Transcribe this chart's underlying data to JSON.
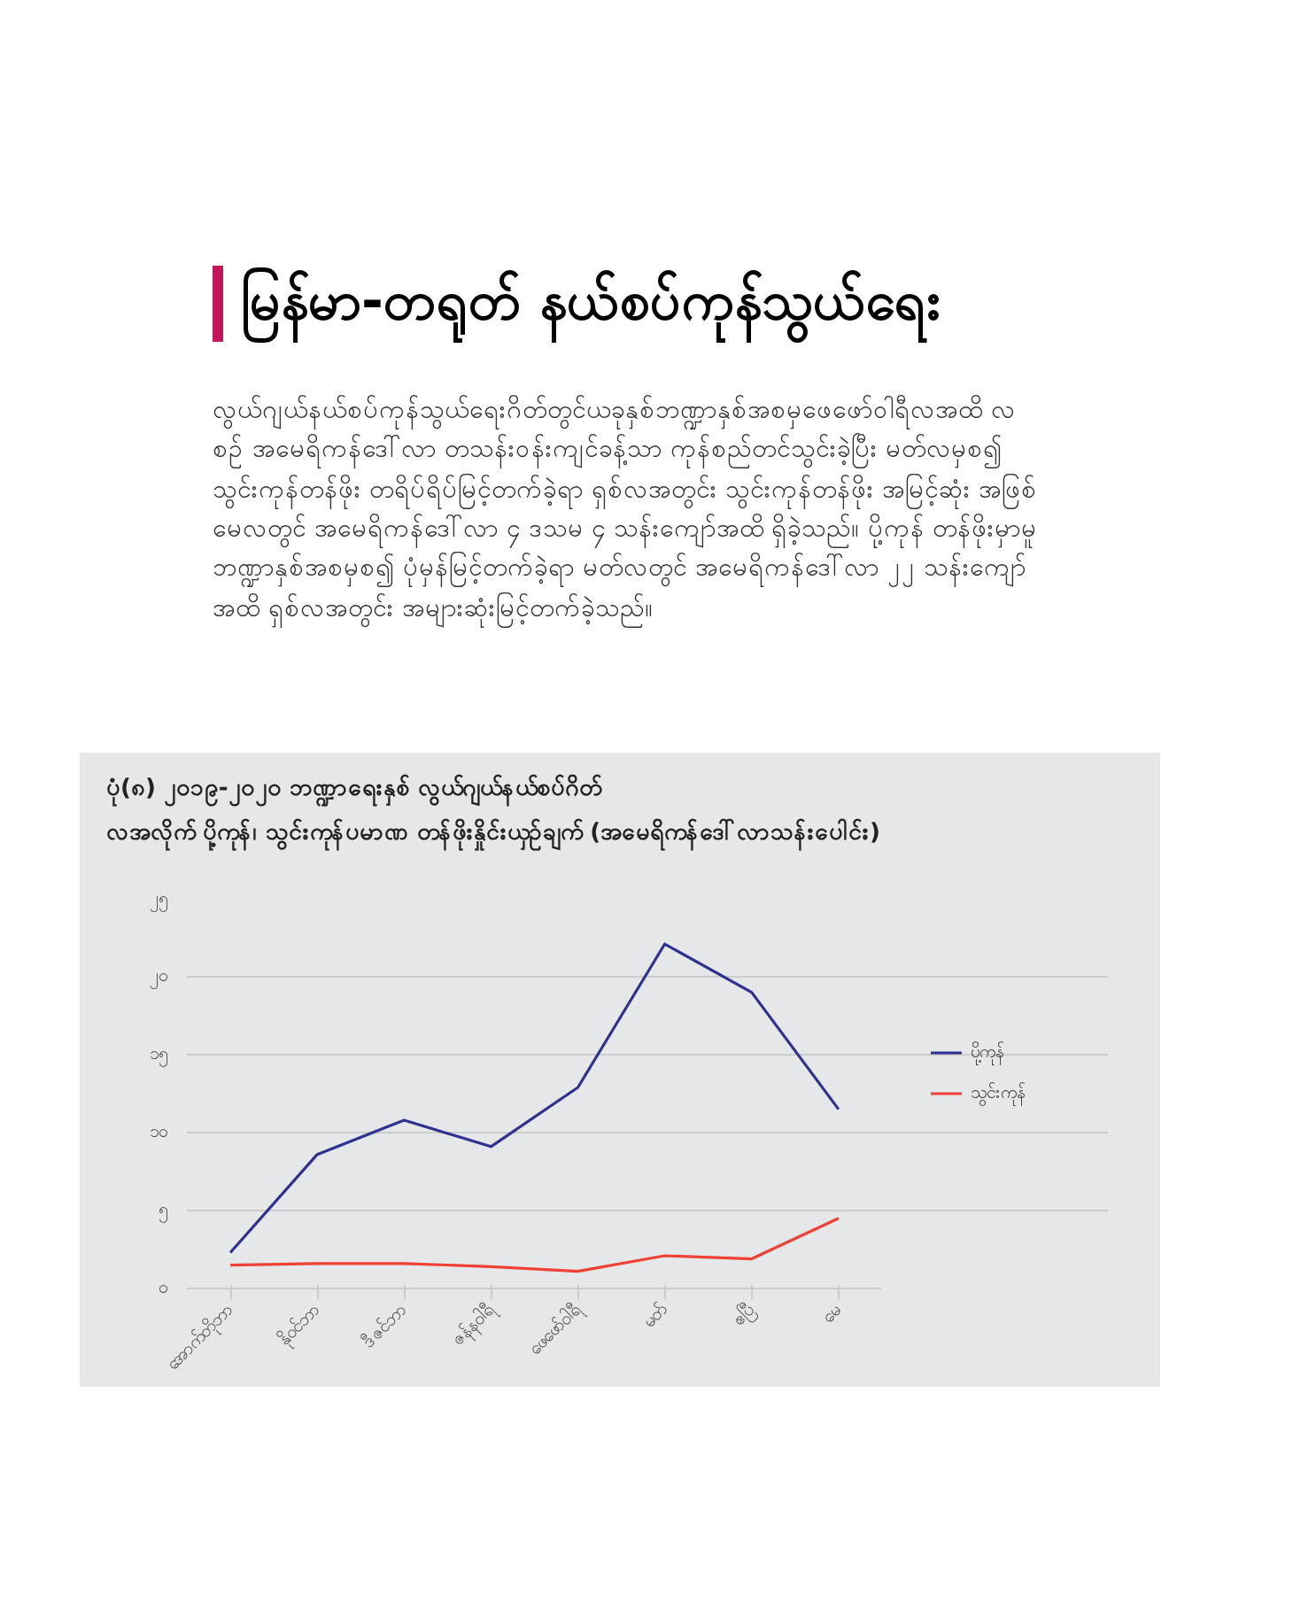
{
  "chart_data": {
    "type": "line",
    "title": "ပုံ(၈)   ၂၀၁၉-၂၀၂၀ ဘဏ္ဍာရေးနှစ် လွယ်ဂျယ်နယ်စပ်ဂိတ်",
    "subtitle": "လအလိုက် ပို့ကုန်၊ သွင်းကုန်ပမာဏ တန်ဖိုးနှိုင်းယှဉ်ချက် (အမေရိကန်ဒေါ်လာသန်းပေါင်း)",
    "annotations": [
      "မြန်မာ-တရုတ် နယ်စပ်ကုန်သွယ်ရေး",
      "လွယ်ဂျယ်နယ်စပ်ကုန်သွယ်ရေးဂိတ်တွင်ယခုနှစ်ဘဏ္ဍာနှစ်အစမှဖေဖော်ဝါရီလအထိ လစဉ် အမေရိကန်ဒေါ်လာ တသန်းဝန်းကျင်ခန့်သာ ကုန်စည်တင်သွင်းခဲ့ပြီး မတ်လမှစ၍ သွင်းကုန်တန်ဖိုး တရိပ်ရိပ်မြင့်တက်ခဲ့ရာ ရှစ်လအတွင်း သွင်းကုန်တန်ဖိုး အမြင့်ဆုံး အဖြစ် မေလတွင် အမေရိကန်ဒေါ်လာ ၄ ဒသမ ၄ သန်းကျော်အထိ ရှိခဲ့သည်။ ပို့ကုန် တန်ဖိုးမှာမူ ဘဏ္ဍာနှစ်အစမှစ၍ ပုံမှန်မြင့်တက်ခဲ့ရာ မတ်လတွင် အမေရိကန်ဒေါ်လာ ၂၂ သန်းကျော်အထိ ရှစ်လအတွင်း အများဆုံးမြင့်တက်ခဲ့သည်။"
    ],
    "categories": [
      "အောက်တိုဘာ",
      "နိုဝင်ဘာ",
      "ဒီဇင်ဘာ",
      "ဇန်နဝါရီ",
      "ဖေဖော်ဝါရီ",
      "မတ်",
      "ဧပြီ",
      "မေ"
    ],
    "series": [
      {
        "name": "ပို့ကုန်",
        "color": "#2e3192",
        "values": [
          2.3,
          8.6,
          10.8,
          9.1,
          12.9,
          22.1,
          19.0,
          11.5
        ]
      },
      {
        "name": "သွင်းကုန်",
        "color": "#ef4136",
        "values": [
          1.5,
          1.6,
          1.6,
          1.4,
          1.1,
          2.1,
          1.9,
          4.5
        ]
      }
    ],
    "ylim": [
      0,
      25
    ],
    "yticks": [
      {
        "value": 0,
        "label": "၀"
      },
      {
        "value": 5,
        "label": "၅"
      },
      {
        "value": 10,
        "label": "၁၀"
      },
      {
        "value": 15,
        "label": "၁၅"
      },
      {
        "value": 20,
        "label": "၂၀"
      },
      {
        "value": 25,
        "label": "၂၅"
      }
    ],
    "grid": "y",
    "legend": "right",
    "marker": "none",
    "line_style": "solid"
  }
}
